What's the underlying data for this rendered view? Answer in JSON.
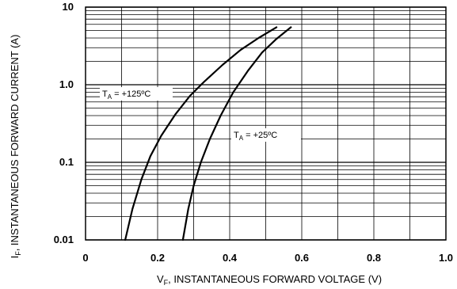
{
  "chart_data": {
    "type": "line",
    "xlabel": {
      "main": "V",
      "sub": "F",
      "rest": ", INSTANTANEOUS FORWARD VOLTAGE (V)"
    },
    "ylabel": {
      "main": "I",
      "sub": "F",
      "rest": ", INSTANTANEOUS FORWARD CURRENT (A)"
    },
    "x_scale": "linear",
    "y_scale": "log",
    "xlim": [
      0,
      1.0
    ],
    "ylim": [
      0.01,
      10
    ],
    "x_ticks": [
      0,
      0.2,
      0.4,
      0.6,
      0.8,
      1.0
    ],
    "x_tick_labels": [
      "0",
      "0.2",
      "0.4",
      "0.6",
      "0.8",
      "1.0"
    ],
    "y_ticks": [
      0.01,
      0.1,
      1.0,
      10
    ],
    "y_tick_labels": [
      "0.01",
      "0.1",
      "1.0",
      "10"
    ],
    "grid": true,
    "series": [
      {
        "annotation": {
          "main": "T",
          "sub": "A",
          "rest": " = +125ºC"
        },
        "x": [
          0.11,
          0.13,
          0.155,
          0.18,
          0.21,
          0.25,
          0.29,
          0.33,
          0.38,
          0.43,
          0.48,
          0.53
        ],
        "y": [
          0.01,
          0.025,
          0.06,
          0.12,
          0.22,
          0.42,
          0.72,
          1.1,
          1.8,
          2.8,
          4.0,
          5.5
        ]
      },
      {
        "annotation": {
          "main": "T",
          "sub": "A",
          "rest": " = +25ºC"
        },
        "x": [
          0.27,
          0.285,
          0.3,
          0.32,
          0.345,
          0.375,
          0.41,
          0.45,
          0.49,
          0.53,
          0.57
        ],
        "y": [
          0.01,
          0.025,
          0.05,
          0.1,
          0.2,
          0.4,
          0.8,
          1.5,
          2.6,
          3.9,
          5.5
        ]
      }
    ]
  }
}
